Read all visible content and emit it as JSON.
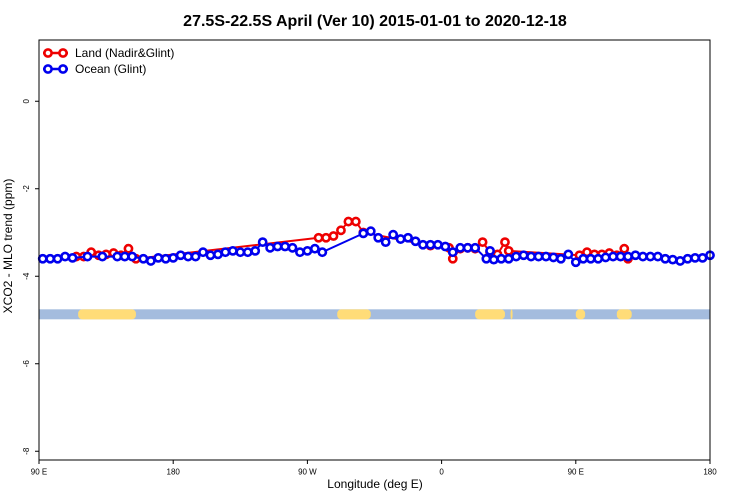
{
  "chart_data": {
    "type": "line",
    "title": "27.5S-22.5S April (Ver 10)   2015-01-01 to 2020-12-18",
    "xlabel": "Longitude (deg E)",
    "ylabel": "XCO2 - MLO trend (ppm)",
    "xlim": [
      90,
      450
    ],
    "ylim": [
      -8.2,
      1.4
    ],
    "x_ticks": [
      {
        "value": 90,
        "label": "90 E"
      },
      {
        "value": 162,
        "label": "180"
      },
      {
        "value": 234,
        "label": "90 W"
      },
      {
        "value": 306,
        "label": "0"
      },
      {
        "value": 378,
        "label": "90 E"
      },
      {
        "value": 450,
        "label": "180"
      }
    ],
    "y_ticks": [
      {
        "value": 0,
        "label": "0"
      },
      {
        "value": -2,
        "label": "-2"
      },
      {
        "value": -4,
        "label": "-4"
      },
      {
        "value": -6,
        "label": "-6"
      },
      {
        "value": -8,
        "label": "-8"
      }
    ],
    "grid": false,
    "legend_position": "top-left",
    "series": [
      {
        "name": "Land (Nadir&Glint)",
        "color": "#ee0000",
        "x": [
          110,
          114,
          118,
          122,
          126,
          130,
          134,
          138,
          142,
          240,
          244,
          248,
          252,
          256,
          260,
          264,
          300,
          310,
          312,
          316,
          320,
          324,
          328,
          332,
          334,
          336,
          340,
          342,
          380,
          384,
          388,
          392,
          396,
          400,
          404,
          406
        ],
        "values": [
          -3.55,
          -3.55,
          -3.45,
          -3.52,
          -3.5,
          -3.47,
          -3.52,
          -3.37,
          -3.6,
          -3.12,
          -3.12,
          -3.08,
          -2.95,
          -2.75,
          -2.75,
          -3.0,
          -3.3,
          -3.35,
          -3.6,
          -3.37,
          -3.35,
          -3.37,
          -3.22,
          -3.45,
          -3.55,
          -3.5,
          -3.22,
          -3.42,
          -3.52,
          -3.45,
          -3.5,
          -3.5,
          -3.47,
          -3.52,
          -3.37,
          -3.6
        ]
      },
      {
        "name": "Ocean (Glint)",
        "color": "#0000ee",
        "x": [
          92,
          96,
          100,
          104,
          108,
          116,
          124,
          132,
          136,
          140,
          146,
          150,
          154,
          158,
          162,
          166,
          170,
          174,
          178,
          182,
          186,
          190,
          194,
          198,
          202,
          206,
          210,
          214,
          218,
          222,
          226,
          230,
          234,
          238,
          242,
          264,
          268,
          272,
          276,
          280,
          284,
          288,
          292,
          296,
          300,
          304,
          308,
          312,
          316,
          320,
          324,
          330,
          332,
          334,
          338,
          342,
          346,
          350,
          354,
          358,
          362,
          366,
          370,
          374,
          378,
          382,
          386,
          390,
          394,
          398,
          402,
          406,
          410,
          414,
          418,
          422,
          426,
          430,
          434,
          438,
          442,
          446,
          450
        ],
        "values": [
          -3.6,
          -3.6,
          -3.6,
          -3.55,
          -3.58,
          -3.55,
          -3.55,
          -3.55,
          -3.55,
          -3.55,
          -3.6,
          -3.65,
          -3.58,
          -3.6,
          -3.58,
          -3.52,
          -3.55,
          -3.55,
          -3.45,
          -3.52,
          -3.5,
          -3.45,
          -3.42,
          -3.45,
          -3.45,
          -3.42,
          -3.22,
          -3.35,
          -3.32,
          -3.32,
          -3.35,
          -3.45,
          -3.42,
          -3.37,
          -3.45,
          -3.02,
          -2.97,
          -3.12,
          -3.22,
          -3.05,
          -3.15,
          -3.12,
          -3.2,
          -3.28,
          -3.28,
          -3.28,
          -3.32,
          -3.45,
          -3.35,
          -3.35,
          -3.35,
          -3.6,
          -3.42,
          -3.62,
          -3.6,
          -3.6,
          -3.55,
          -3.52,
          -3.55,
          -3.55,
          -3.55,
          -3.57,
          -3.6,
          -3.5,
          -3.68,
          -3.6,
          -3.6,
          -3.6,
          -3.57,
          -3.55,
          -3.55,
          -3.55,
          -3.52,
          -3.55,
          -3.55,
          -3.55,
          -3.6,
          -3.62,
          -3.65,
          -3.6,
          -3.58,
          -3.58,
          -3.52
        ]
      }
    ],
    "surface_band": {
      "y_center": -4.87,
      "ocean_color": "#a4bcde",
      "land_color": "#ffdc78",
      "land_segments": [
        [
          111,
          142
        ],
        [
          250,
          268
        ],
        [
          324,
          340
        ],
        [
          343,
          344
        ],
        [
          378,
          383
        ],
        [
          400,
          408
        ]
      ]
    }
  }
}
